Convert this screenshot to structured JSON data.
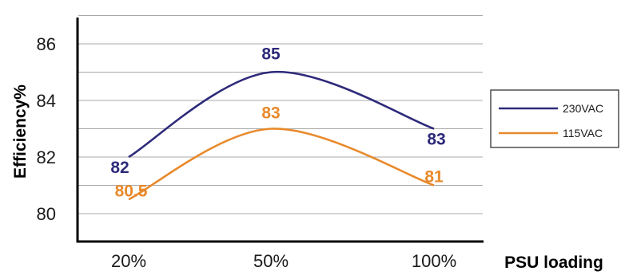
{
  "chart_data": {
    "type": "line",
    "categories": [
      "20%",
      "50%",
      "100%"
    ],
    "xlabel": "PSU loading",
    "ylabel": "Efficiency%",
    "ylim": [
      79,
      87.5
    ],
    "yticks": [
      "80",
      "82",
      "84",
      "86"
    ],
    "grid": "horizontal",
    "legend_position": "right",
    "series": [
      {
        "name": "230VAC",
        "values": [
          82,
          85,
          83
        ],
        "labels": [
          "82",
          "85",
          "83"
        ],
        "color": "#2e2a7a"
      },
      {
        "name": "115VAC",
        "values": [
          80.5,
          83,
          81
        ],
        "labels": [
          "80.5",
          "83",
          "81"
        ],
        "color": "#e8892b"
      }
    ]
  }
}
